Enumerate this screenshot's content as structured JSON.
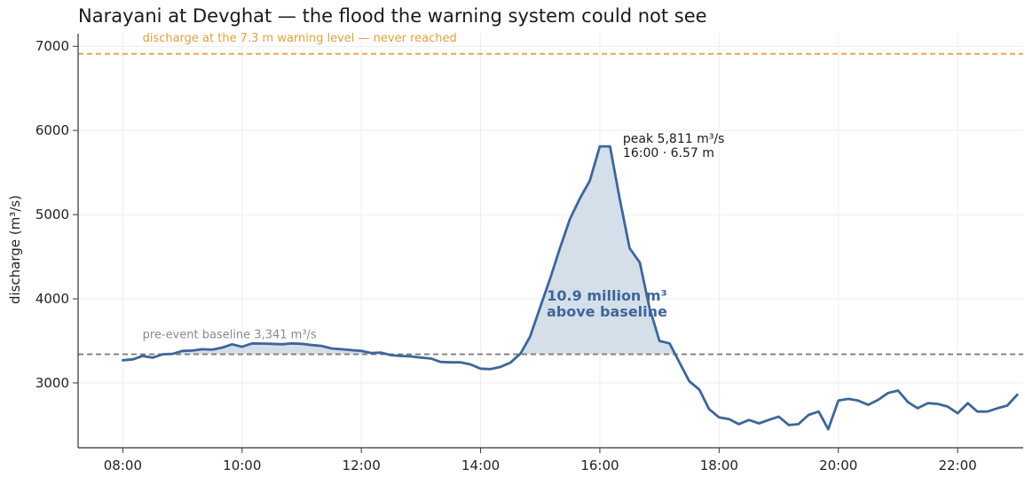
{
  "chart_data": {
    "type": "line",
    "title": "Narayani at Devghat — the flood the warning system could not see",
    "xlabel": "",
    "ylabel": "discharge (m³/s)",
    "xlim": [
      7.25,
      23.1
    ],
    "ylim": [
      2230,
      7150
    ],
    "x_ticks": [
      8,
      10,
      12,
      14,
      16,
      18,
      20,
      22
    ],
    "x_tick_labels": [
      "08:00",
      "10:00",
      "12:00",
      "14:00",
      "16:00",
      "18:00",
      "20:00",
      "22:00"
    ],
    "y_ticks": [
      3000,
      4000,
      5000,
      6000,
      7000
    ],
    "y_tick_labels": [
      "3000",
      "4000",
      "5000",
      "6000",
      "7000"
    ],
    "grid": true,
    "colors": {
      "line": "#3e6699",
      "fill": "#d3dde8",
      "warning": "#e0a040",
      "baseline": "#7f7f7f"
    },
    "warning_level": {
      "value": 6910,
      "label": "discharge at the 7.3 m warning level — never reached"
    },
    "baseline": {
      "value": 3341,
      "label": "pre-event baseline 3,341 m³/s"
    },
    "peak": {
      "x": 16.0,
      "y": 5811,
      "label_line1": "peak 5,811 m³/s",
      "label_line2": "16:00 · 6.57 m"
    },
    "area_label": {
      "line1": "10.9 million m³",
      "line2": "above baseline"
    },
    "series": [
      {
        "x": [
          8.0,
          8.17,
          8.33,
          8.5,
          8.67,
          8.83,
          9.0,
          9.17,
          9.33,
          9.5,
          9.67,
          9.83,
          10.0,
          10.17,
          10.33,
          10.5,
          10.67,
          10.83,
          11.0,
          11.17,
          11.33,
          11.5,
          11.67,
          11.83,
          12.0,
          12.17,
          12.33,
          12.5,
          12.67,
          12.83,
          13.0,
          13.17,
          13.33,
          13.5,
          13.67,
          13.83,
          14.0,
          14.17,
          14.33,
          14.5,
          14.67,
          14.83,
          15.0,
          15.17,
          15.33,
          15.5,
          15.67,
          15.83,
          16.0,
          16.17,
          16.33,
          16.5,
          16.67,
          16.83,
          17.0,
          17.17,
          17.33,
          17.5,
          17.67,
          17.83,
          18.0,
          18.17,
          18.33,
          18.5,
          18.67,
          18.83,
          19.0,
          19.17,
          19.33,
          19.5,
          19.67,
          19.83,
          20.0,
          20.17,
          20.33,
          20.5,
          20.67,
          20.83,
          21.0,
          21.17,
          21.33,
          21.5,
          21.67,
          21.83,
          22.0,
          22.17,
          22.33,
          22.5,
          22.67,
          22.83,
          23.0
        ],
        "y": [
          3270,
          3280,
          3320,
          3300,
          3340,
          3345,
          3380,
          3385,
          3400,
          3395,
          3420,
          3460,
          3430,
          3470,
          3468,
          3465,
          3460,
          3470,
          3465,
          3450,
          3440,
          3410,
          3400,
          3390,
          3380,
          3355,
          3360,
          3330,
          3320,
          3315,
          3300,
          3290,
          3250,
          3245,
          3245,
          3220,
          3170,
          3165,
          3190,
          3240,
          3350,
          3550,
          3900,
          4250,
          4600,
          4950,
          5200,
          5400,
          5811,
          5811,
          5200,
          4600,
          4430,
          3900,
          3500,
          3470,
          3250,
          3020,
          2920,
          2690,
          2590,
          2570,
          2510,
          2560,
          2520,
          2560,
          2600,
          2500,
          2510,
          2620,
          2660,
          2450,
          2790,
          2810,
          2790,
          2740,
          2800,
          2880,
          2910,
          2770,
          2700,
          2760,
          2750,
          2720,
          2640,
          2760,
          2660,
          2660,
          2700,
          2730,
          2860
        ]
      }
    ]
  }
}
